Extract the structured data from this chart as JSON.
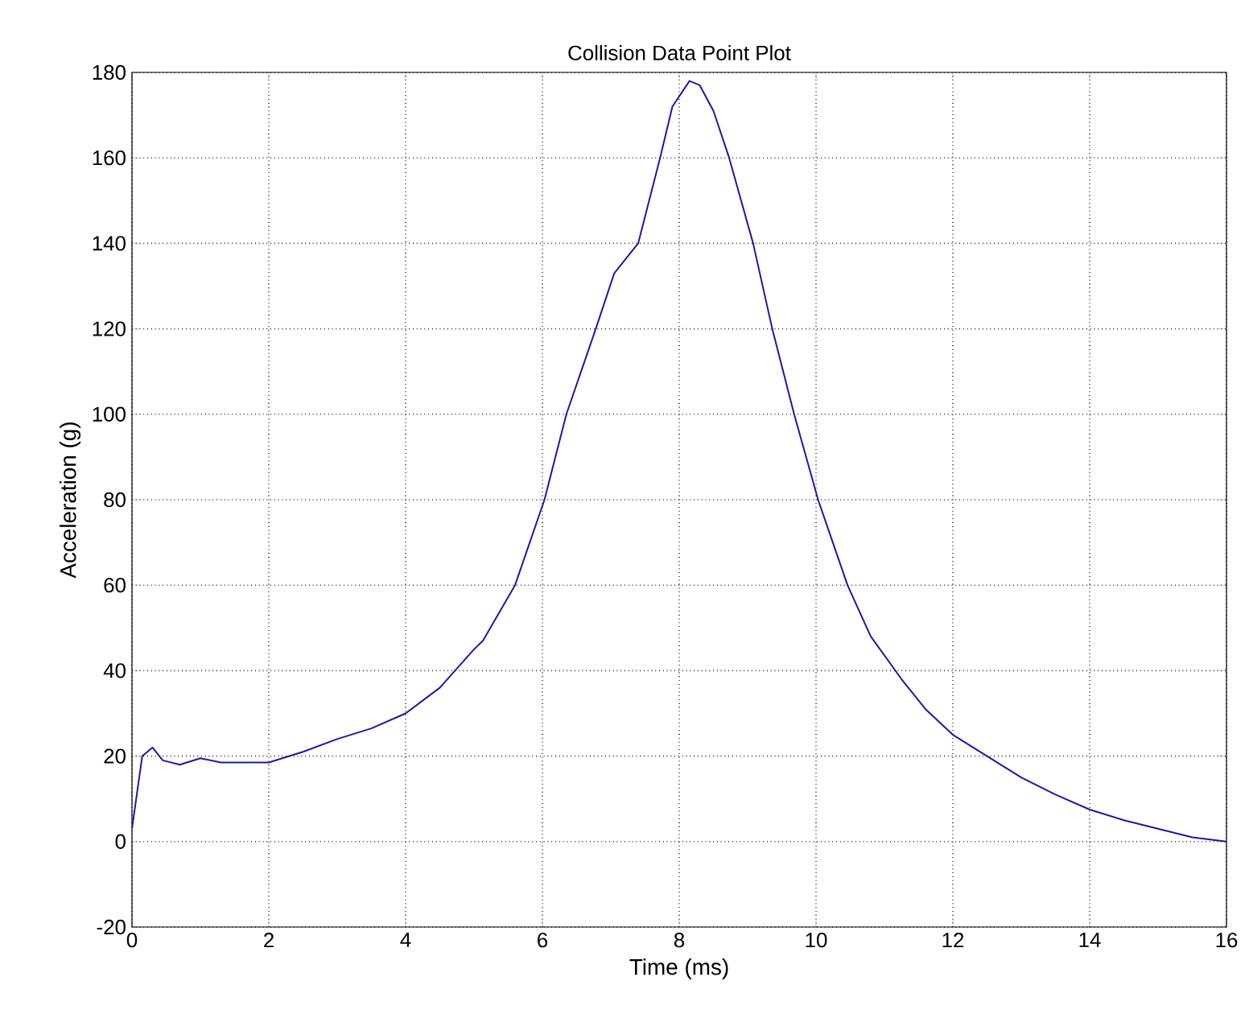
{
  "chart_data": {
    "type": "line",
    "title": "Collision Data Point Plot",
    "xlabel": "Time (ms)",
    "ylabel": "Acceleration (g)",
    "xlim": [
      0,
      16
    ],
    "ylim": [
      -20,
      180
    ],
    "xticks": [
      0,
      2,
      4,
      6,
      8,
      10,
      12,
      14,
      16
    ],
    "yticks": [
      -20,
      0,
      20,
      40,
      60,
      80,
      100,
      120,
      140,
      160,
      180
    ],
    "grid": true,
    "series": [
      {
        "color": "#1a1aa6",
        "x": [
          0,
          0.15,
          0.3,
          0.45,
          0.7,
          1.0,
          1.3,
          1.6,
          2.0,
          2.5,
          3.0,
          3.5,
          4.0,
          4.5,
          5.0,
          5.13,
          5.6,
          6.03,
          6.35,
          6.78,
          7.05,
          7.4,
          7.72,
          7.9,
          8.15,
          8.3,
          8.5,
          8.73,
          9.08,
          9.36,
          9.68,
          10.03,
          10.46,
          10.8,
          11.25,
          11.6,
          12.0,
          12.5,
          13.0,
          13.5,
          14.0,
          14.5,
          15.0,
          15.5,
          16.0
        ],
        "values": [
          3,
          20,
          22,
          19,
          18,
          19.5,
          18.5,
          18.5,
          18.5,
          21,
          24,
          26.5,
          30,
          36,
          45,
          47,
          60,
          80,
          100,
          120,
          133,
          140,
          160,
          172,
          178,
          177,
          171,
          160,
          140,
          120,
          100,
          80,
          60,
          48,
          38,
          31,
          25,
          20,
          15,
          11,
          7.5,
          5,
          3,
          1,
          0
        ]
      }
    ]
  }
}
